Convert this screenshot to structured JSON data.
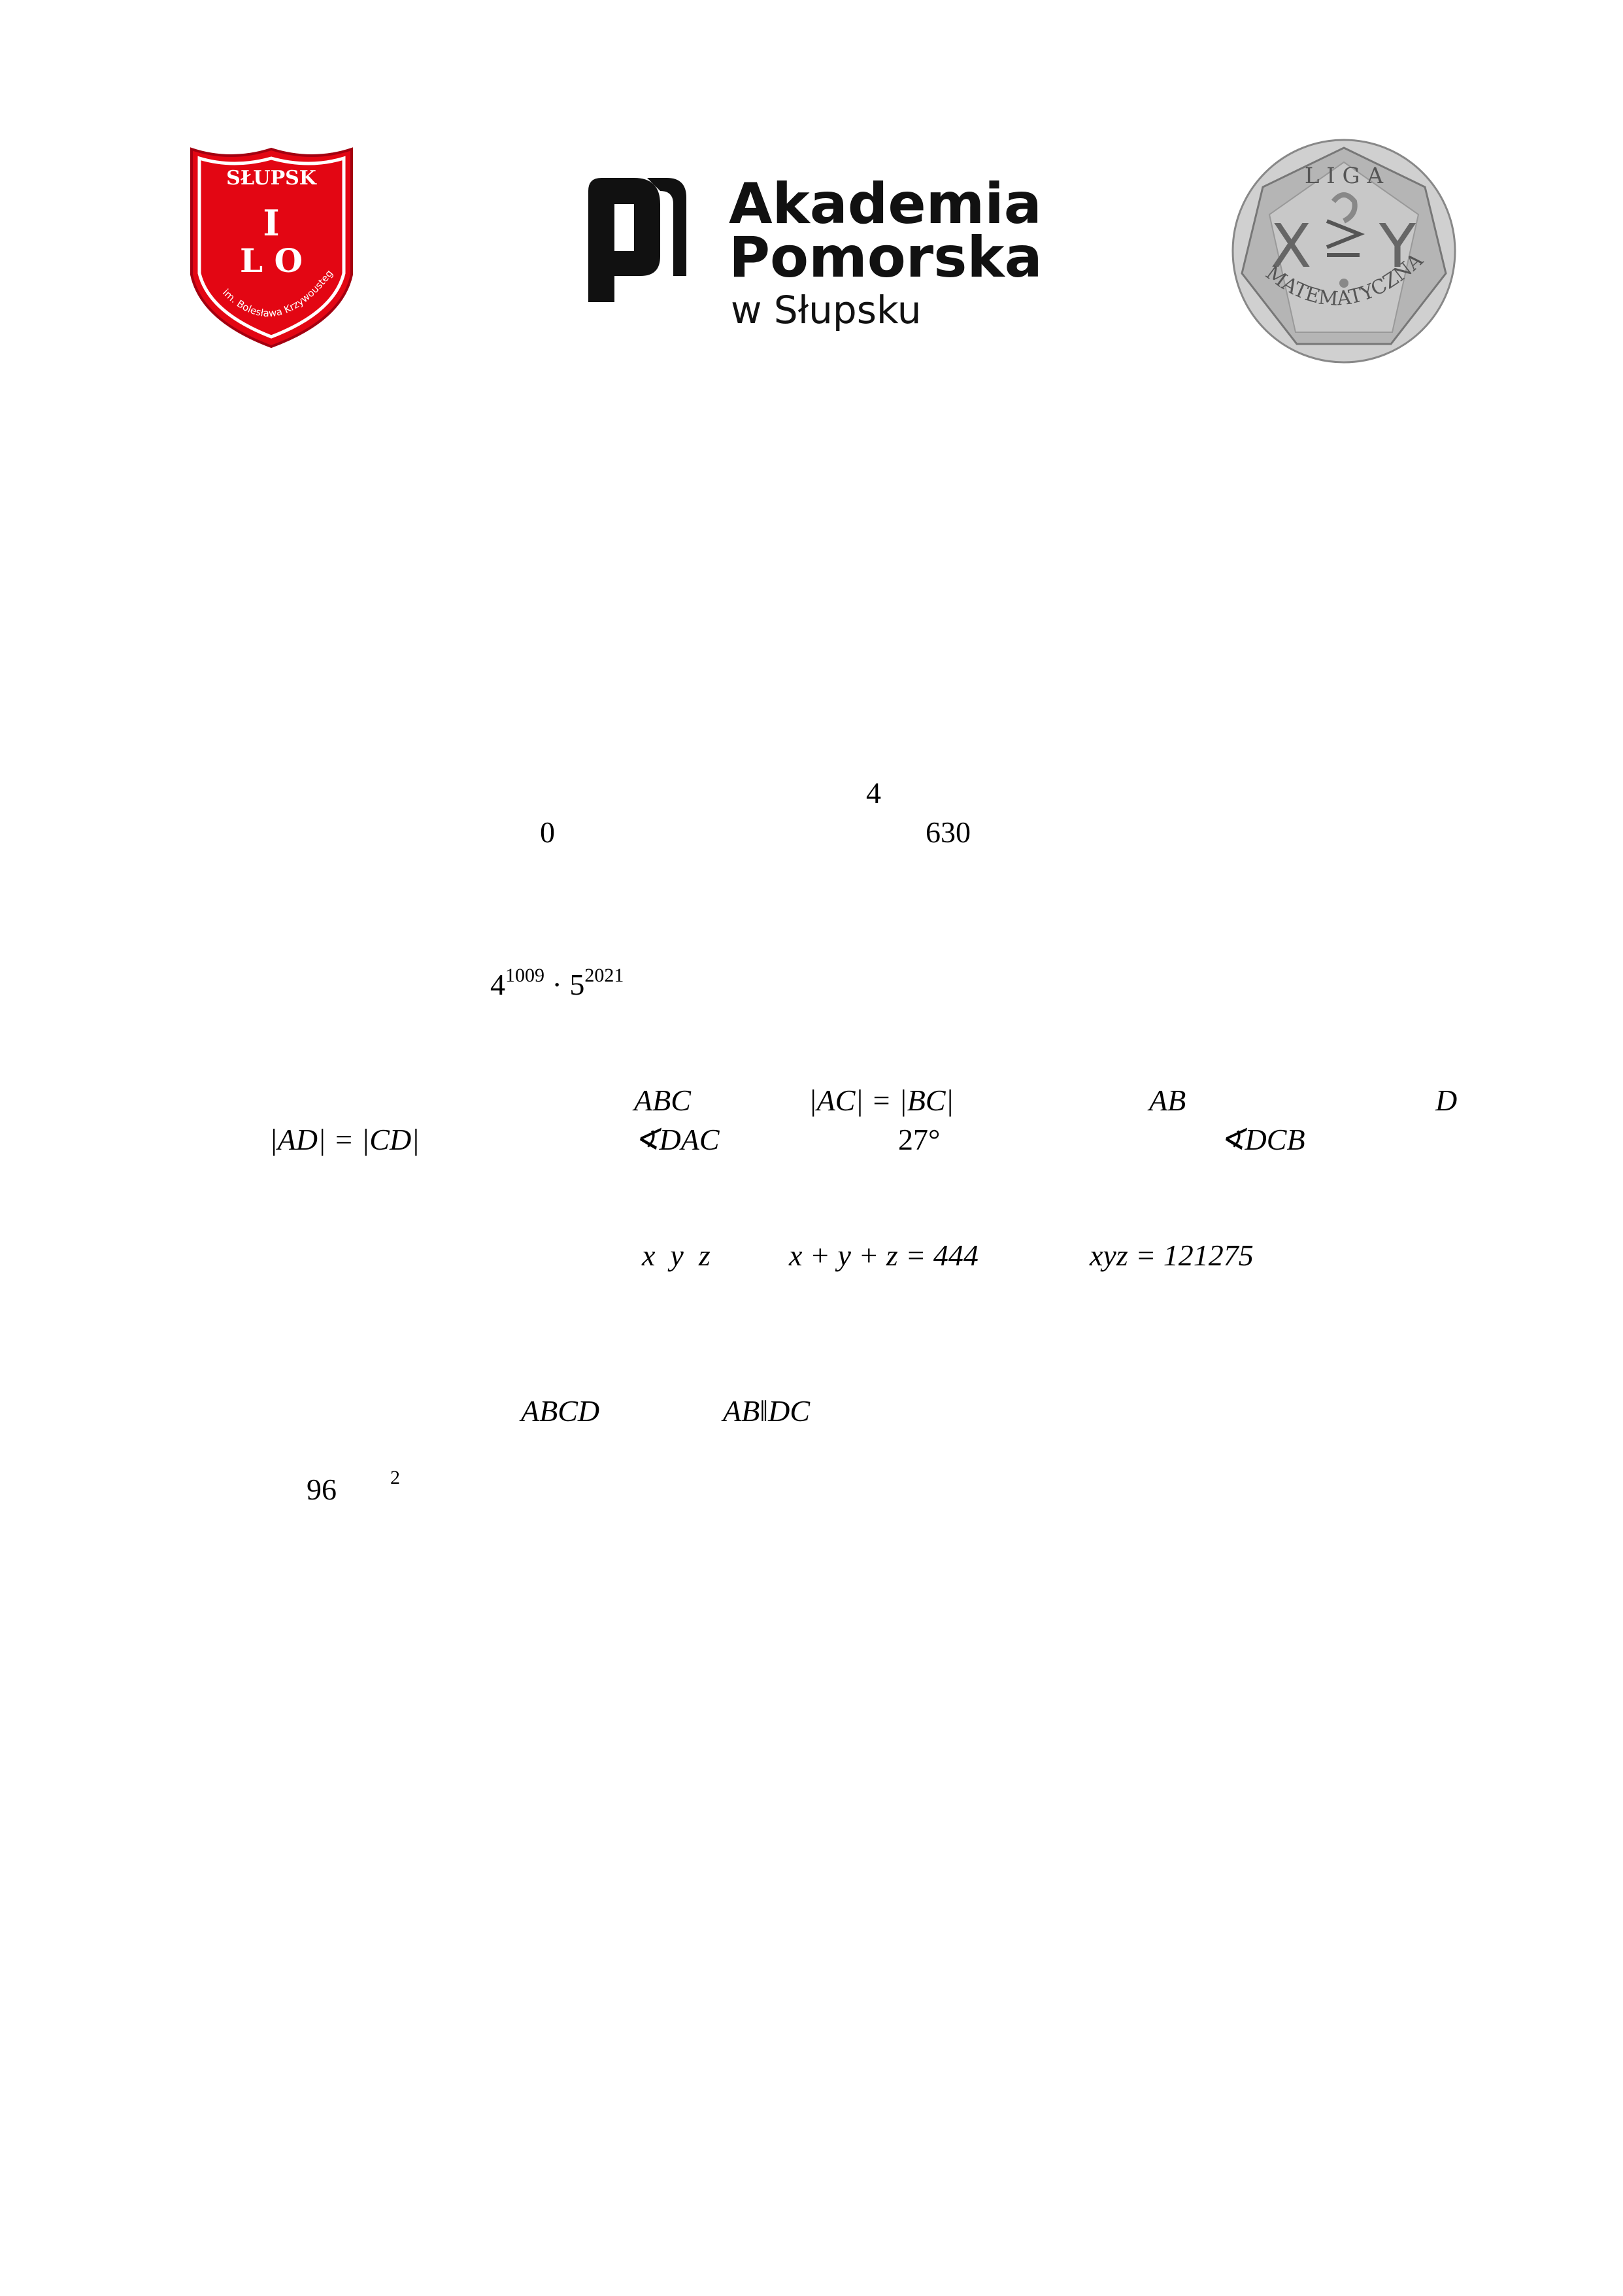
{
  "logos": {
    "school": {
      "city": "SŁUPSK",
      "roman": "I",
      "lo": "L O",
      "patron": "im. Bolesława Krzywoustego",
      "color": "#e30613"
    },
    "academy": {
      "line1": "Akademia",
      "line2": "Pomorska",
      "line3": "w Słupsku"
    },
    "league": {
      "top": "L I G A",
      "x": "X",
      "y": "Y",
      "bottom": "MATEMATYCZNA"
    }
  },
  "math": {
    "m1": "4",
    "m2": "0",
    "m3": "630",
    "m4_base1": "4",
    "m4_exp1": "1009",
    "m4_dot": " · ",
    "m4_base2": "5",
    "m4_exp2": "2021",
    "m5": "ABC",
    "m6": "|AC| = |BC|",
    "m7": "AB",
    "m8": "D",
    "m9": "|AD| = |CD|",
    "m10": "∢DAC",
    "m11": "27°",
    "m12": "∢DCB",
    "m13": "x  y  z",
    "m14": "x + y + z = 444",
    "m15": "xyz = 121275",
    "m16": "ABCD",
    "m17": "AB‖DC",
    "m18": "96",
    "m19": "2"
  }
}
